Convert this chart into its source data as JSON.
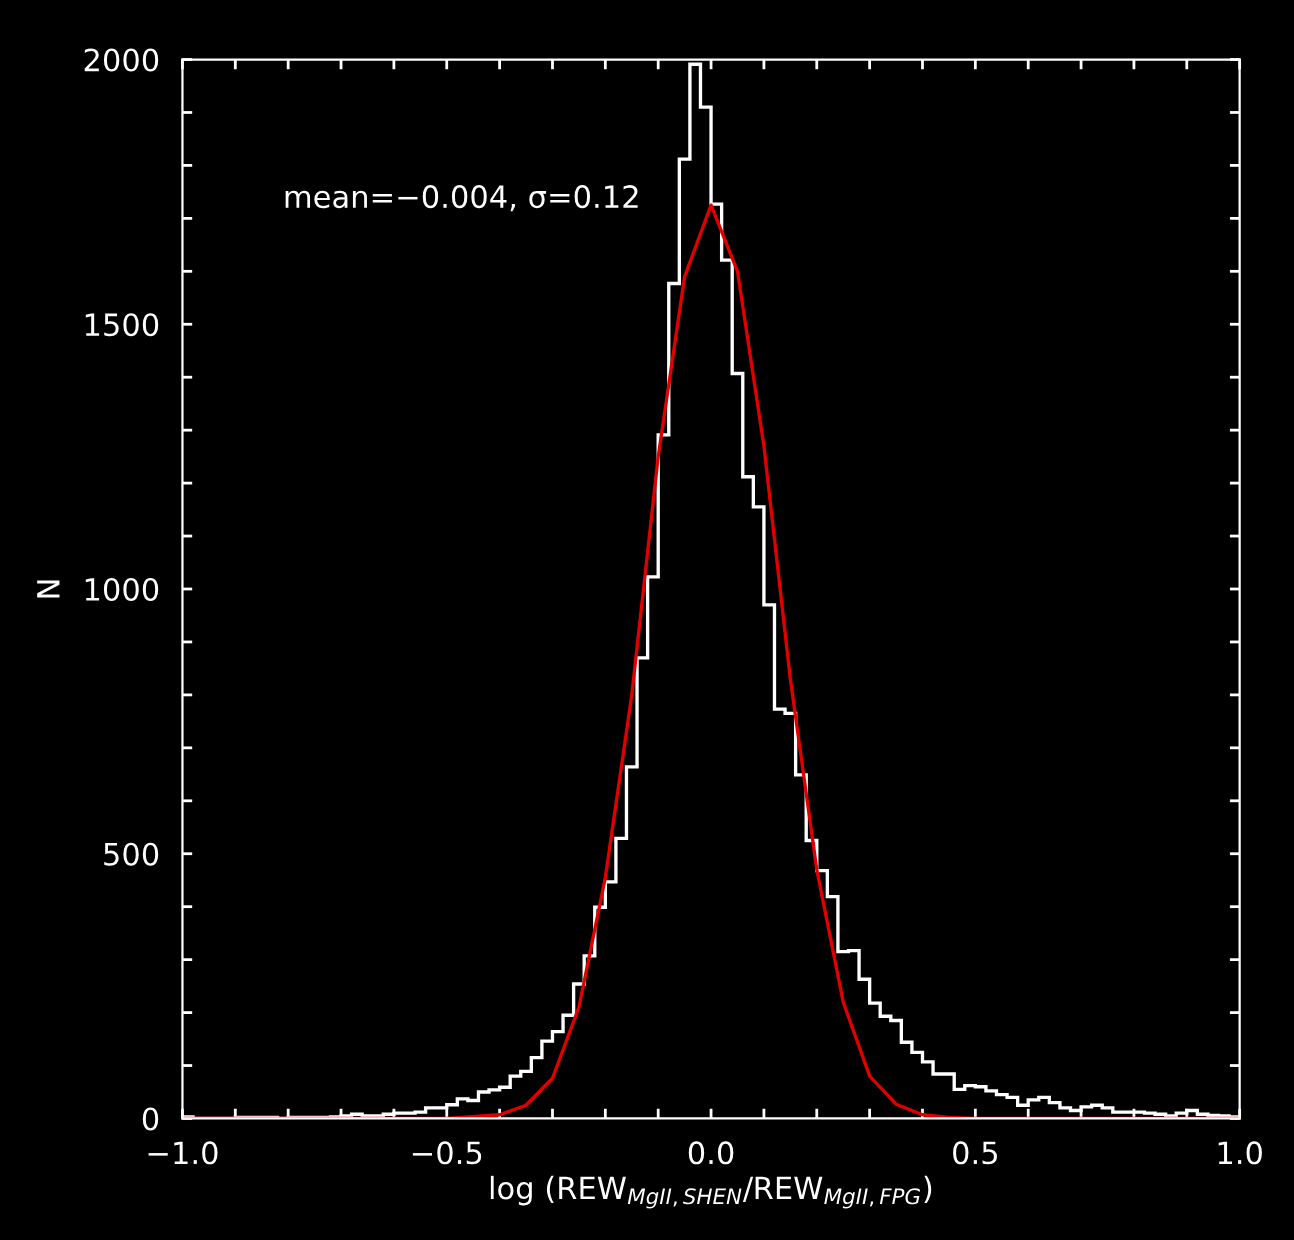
{
  "chart_data": [
    {
      "type": "histogram",
      "xlabel": "log (REW$_{MgII,SHEN}$/REW$_{MgII,FPG}$)",
      "ylabel": "N",
      "annotations": [
        "mean=−0.004, σ=0.12"
      ],
      "bins": [
        -1.0,
        -0.98,
        -0.96,
        -0.94,
        -0.92,
        -0.9,
        -0.88,
        -0.86,
        -0.84,
        -0.82,
        -0.8,
        -0.78,
        -0.76,
        -0.74,
        -0.72,
        -0.7,
        -0.68,
        -0.66,
        -0.64,
        -0.62,
        -0.6,
        -0.58,
        -0.56,
        -0.54,
        -0.52,
        -0.5,
        -0.48,
        -0.46,
        -0.44,
        -0.42,
        -0.4,
        -0.38,
        -0.36,
        -0.34,
        -0.32,
        -0.3,
        -0.28,
        -0.26,
        -0.24,
        -0.22,
        -0.2,
        -0.18,
        -0.16,
        -0.14,
        -0.12,
        -0.1,
        -0.08,
        -0.06,
        -0.04,
        -0.02,
        0.0,
        0.02,
        0.04,
        0.06,
        0.08,
        0.1,
        0.12,
        0.14,
        0.16,
        0.18,
        0.2,
        0.22,
        0.24,
        0.26,
        0.28,
        0.3,
        0.32,
        0.34,
        0.36,
        0.38,
        0.4,
        0.42,
        0.44,
        0.46,
        0.48,
        0.5,
        0.52,
        0.54,
        0.56,
        0.58,
        0.6,
        0.62,
        0.64,
        0.66,
        0.68,
        0.7,
        0.72,
        0.74,
        0.76,
        0.78,
        0.8,
        0.82,
        0.84,
        0.86,
        0.88,
        0.9,
        0.92,
        0.94,
        0.96,
        0.98,
        1.0
      ],
      "series": [
        {
          "type": "histogram",
          "color": "#ffffff",
          "values": [
            3,
            0,
            0,
            0,
            0,
            2,
            2,
            2,
            2,
            0,
            2,
            2,
            2,
            2,
            3,
            5,
            8,
            5,
            5,
            8,
            10,
            10,
            12,
            20,
            20,
            26,
            37,
            34,
            50,
            54,
            59,
            80,
            89,
            115,
            146,
            164,
            195,
            254,
            307,
            399,
            447,
            529,
            664,
            870,
            1023,
            1291,
            1577,
            1812,
            1991,
            1910,
            1727,
            1621,
            1407,
            1212,
            1155,
            970,
            773,
            765,
            649,
            525,
            468,
            419,
            315,
            317,
            263,
            218,
            193,
            185,
            144,
            125,
            107,
            84,
            84,
            55,
            62,
            60,
            52,
            45,
            40,
            25,
            35,
            40,
            30,
            20,
            15,
            22,
            25,
            20,
            12,
            12,
            12,
            10,
            8,
            5,
            10,
            15,
            8,
            6,
            5,
            3
          ]
        },
        {
          "type": "line",
          "color": "#e00000",
          "x": [
            -1.0,
            -0.5,
            -0.4,
            -0.35,
            -0.3,
            -0.25,
            -0.2,
            -0.15,
            -0.1,
            -0.05,
            0.0,
            0.05,
            0.1,
            0.15,
            0.2,
            0.25,
            0.3,
            0.35,
            0.4,
            0.45,
            0.5,
            1.0
          ],
          "values": [
            0,
            0,
            7,
            25,
            76,
            210,
            455,
            800,
            1250,
            1590,
            1725,
            1600,
            1270,
            830,
            470,
            220,
            80,
            27,
            7,
            2,
            0,
            0
          ]
        }
      ],
      "xlim": [
        -1.0,
        1.0
      ],
      "xticks": [
        {
          "value": -1.0,
          "label": "−1.0"
        },
        {
          "value": -0.9,
          "label": null
        },
        {
          "value": -0.8,
          "label": null
        },
        {
          "value": -0.7,
          "label": null
        },
        {
          "value": -0.6,
          "label": null
        },
        {
          "value": -0.5,
          "label": "−0.5"
        },
        {
          "value": -0.4,
          "label": null
        },
        {
          "value": -0.3,
          "label": null
        },
        {
          "value": -0.2,
          "label": null
        },
        {
          "value": -0.1,
          "label": null
        },
        {
          "value": 0.0,
          "label": "0.0"
        },
        {
          "value": 0.1,
          "label": null
        },
        {
          "value": 0.2,
          "label": null
        },
        {
          "value": 0.3,
          "label": null
        },
        {
          "value": 0.4,
          "label": null
        },
        {
          "value": 0.5,
          "label": "0.5"
        },
        {
          "value": 0.6,
          "label": null
        },
        {
          "value": 0.7,
          "label": null
        },
        {
          "value": 0.8,
          "label": null
        },
        {
          "value": 0.9,
          "label": null
        },
        {
          "value": 1.0,
          "label": "1.0"
        }
      ],
      "ylim": [
        0,
        2000
      ],
      "yticks": [
        0,
        {
          "value": 100,
          "label": null
        },
        {
          "value": 200,
          "label": null
        },
        {
          "value": 300,
          "label": null
        },
        {
          "value": 400,
          "label": null
        },
        500,
        {
          "value": 600,
          "label": null
        },
        {
          "value": 700,
          "label": null
        },
        {
          "value": 800,
          "label": null
        },
        {
          "value": 900,
          "label": null
        },
        1000,
        {
          "value": 1100,
          "label": null
        },
        {
          "value": 1200,
          "label": null
        },
        {
          "value": 1300,
          "label": null
        },
        {
          "value": 1400,
          "label": null
        },
        1500,
        {
          "value": 1600,
          "label": null
        },
        {
          "value": 1700,
          "label": null
        },
        {
          "value": 1800,
          "label": null
        },
        {
          "value": 1900,
          "label": null
        },
        2000
      ],
      "grid": false
    }
  ]
}
